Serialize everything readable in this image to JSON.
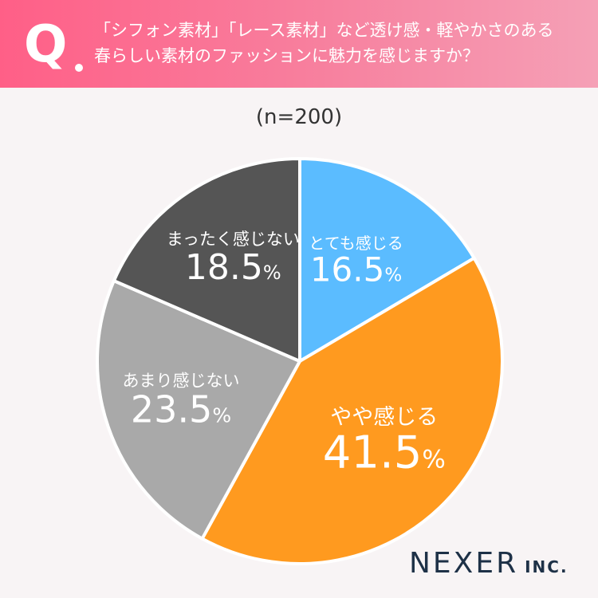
{
  "header": {
    "q_letter": "Q",
    "question_line1": "「シフォン素材」「レース素材」など透け感・軽やかさのある",
    "question_line2": "春らしい素材のファッションに魅力を感じますか？"
  },
  "sample_label": "(n=200)",
  "brand": {
    "name": "NEXER",
    "suffix": "INC."
  },
  "chart_data": {
    "type": "pie",
    "categories": [
      "とても感じる",
      "やや感じる",
      "あまり感じない",
      "まったく感じない"
    ],
    "values": [
      16.5,
      41.5,
      23.5,
      18.5
    ],
    "unit": "%",
    "value_labels": [
      "16.5",
      "41.5",
      "23.5",
      "18.5"
    ],
    "colors": [
      "#5bbcff",
      "#ff9a1f",
      "#a9a9a9",
      "#555555"
    ],
    "start": "12 o'clock, clockwise"
  }
}
